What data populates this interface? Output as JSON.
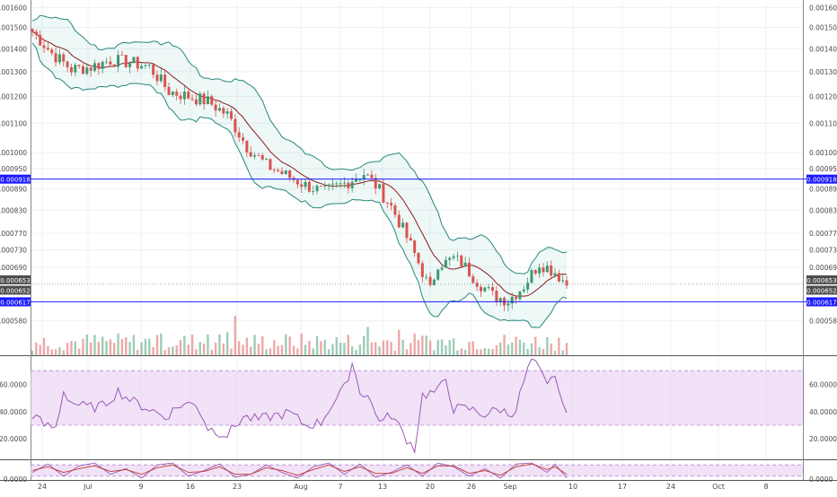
{
  "colors": {
    "background": "#ffffff",
    "grid": "#eef0f3",
    "axis_text": "#4a4a4a",
    "candle_up": "#3d9970",
    "candle_down": "#d9534f",
    "bollinger_band": "#26867a",
    "bollinger_fill": "#26a69a",
    "basis_line": "#8b1a1a",
    "support_resistance": "#1a1aff",
    "rsi_line": "#9b59b6",
    "rsi_band": "#e7cff2",
    "stoch_k": "#9b59b6",
    "stoch_d": "#c0392b",
    "price_tag_dark": "#4d4d4d"
  },
  "chart_data": [
    {
      "type": "candlestick",
      "panel": "price",
      "indicators": [
        "Bollinger Bands",
        "Volume"
      ],
      "y_ticks": [
        "0.001600",
        "0.001500",
        "0.001400",
        "0.001300",
        "0.001200",
        "0.001100",
        "0.001000",
        "0.000950",
        "0.000890",
        "0.000830",
        "0.000770",
        "0.000730",
        "0.000690",
        "0.000580"
      ],
      "y_tick_values": [
        0.0016,
        0.0015,
        0.0014,
        0.0013,
        0.0012,
        0.0011,
        0.001,
        0.00095,
        0.00089,
        0.00083,
        0.00077,
        0.00073,
        0.00069,
        0.00058
      ],
      "scale": "log",
      "horizontal_lines": [
        {
          "label": "0.000918",
          "value": 0.000918
        },
        {
          "label": "0.000617",
          "value": 0.000617
        }
      ],
      "price_labels": [
        {
          "label": "0.000653",
          "value": 0.000653
        },
        {
          "label": "0.000652",
          "value": 0.000652
        }
      ],
      "x_ticks": [
        "24",
        "Jul",
        "9",
        "16",
        "23",
        "Aug",
        "7",
        "13",
        "20",
        "26",
        "Sep",
        "10",
        "17",
        "24",
        "Oct",
        "8"
      ],
      "trend_path": [
        [
          0,
          0.00148
        ],
        [
          5,
          0.00138
        ],
        [
          10,
          0.00131
        ],
        [
          15,
          0.00132
        ],
        [
          20,
          0.00135
        ],
        [
          25,
          0.00134
        ],
        [
          30,
          0.00132
        ],
        [
          35,
          0.00122
        ],
        [
          40,
          0.0012
        ],
        [
          45,
          0.00118
        ],
        [
          50,
          0.00113
        ],
        [
          55,
          0.00102
        ],
        [
          60,
          0.00096
        ],
        [
          65,
          0.00093
        ],
        [
          70,
          0.0009
        ],
        [
          75,
          0.00088
        ],
        [
          80,
          0.000905
        ],
        [
          85,
          0.000935
        ],
        [
          88,
          0.0009
        ],
        [
          92,
          0.00084
        ],
        [
          96,
          0.00076
        ],
        [
          100,
          0.00068
        ],
        [
          102,
          0.00064
        ],
        [
          104,
          0.0007
        ],
        [
          106,
          0.0007
        ],
        [
          108,
          0.00071
        ],
        [
          110,
          0.0007
        ],
        [
          114,
          0.00066
        ],
        [
          118,
          0.00063
        ],
        [
          122,
          0.00062
        ],
        [
          126,
          0.00065
        ],
        [
          130,
          0.0007
        ],
        [
          134,
          0.00068
        ],
        [
          137,
          0.000653
        ]
      ],
      "volume_level": 0.35
    },
    {
      "type": "line",
      "panel": "rsi",
      "y_ticks": [
        "60.0000",
        "40.0000",
        "20.0000"
      ],
      "y_tick_values": [
        60,
        40,
        20
      ],
      "ylim": [
        5,
        80
      ],
      "band": [
        30,
        70
      ],
      "path": [
        [
          0,
          38
        ],
        [
          3,
          30
        ],
        [
          6,
          28
        ],
        [
          8,
          55
        ],
        [
          10,
          47
        ],
        [
          14,
          43
        ],
        [
          18,
          44
        ],
        [
          22,
          55
        ],
        [
          26,
          47
        ],
        [
          30,
          42
        ],
        [
          34,
          36
        ],
        [
          38,
          45
        ],
        [
          42,
          46
        ],
        [
          45,
          28
        ],
        [
          50,
          23
        ],
        [
          54,
          36
        ],
        [
          58,
          34
        ],
        [
          62,
          37
        ],
        [
          66,
          39
        ],
        [
          70,
          30
        ],
        [
          74,
          32
        ],
        [
          76,
          42
        ],
        [
          80,
          57
        ],
        [
          82,
          76
        ],
        [
          84,
          55
        ],
        [
          86,
          52
        ],
        [
          88,
          38
        ],
        [
          90,
          33
        ],
        [
          92,
          38
        ],
        [
          94,
          29
        ],
        [
          96,
          20
        ],
        [
          98,
          13
        ],
        [
          100,
          52
        ],
        [
          104,
          55
        ],
        [
          106,
          64
        ],
        [
          108,
          42
        ],
        [
          112,
          42
        ],
        [
          116,
          38
        ],
        [
          120,
          42
        ],
        [
          122,
          38
        ],
        [
          124,
          42
        ],
        [
          126,
          62
        ],
        [
          128,
          78
        ],
        [
          130,
          70
        ],
        [
          132,
          58
        ],
        [
          134,
          68
        ],
        [
          136,
          42
        ],
        [
          137,
          43
        ]
      ]
    },
    {
      "type": "line",
      "panel": "stochastic",
      "y_ticks": [
        "0.0000"
      ],
      "y_tick_values": [
        0
      ],
      "ylim": [
        0,
        100
      ],
      "band": [
        20,
        80
      ],
      "k_path": [
        [
          0,
          40
        ],
        [
          4,
          85
        ],
        [
          8,
          20
        ],
        [
          12,
          75
        ],
        [
          16,
          90
        ],
        [
          20,
          30
        ],
        [
          24,
          60
        ],
        [
          28,
          10
        ],
        [
          32,
          80
        ],
        [
          36,
          90
        ],
        [
          40,
          20
        ],
        [
          44,
          50
        ],
        [
          48,
          85
        ],
        [
          52,
          15
        ],
        [
          56,
          30
        ],
        [
          60,
          80
        ],
        [
          64,
          40
        ],
        [
          68,
          10
        ],
        [
          72,
          70
        ],
        [
          76,
          90
        ],
        [
          80,
          30
        ],
        [
          84,
          85
        ],
        [
          88,
          15
        ],
        [
          92,
          40
        ],
        [
          96,
          80
        ],
        [
          100,
          20
        ],
        [
          104,
          90
        ],
        [
          108,
          70
        ],
        [
          112,
          20
        ],
        [
          116,
          60
        ],
        [
          120,
          10
        ],
        [
          124,
          85
        ],
        [
          128,
          90
        ],
        [
          132,
          40
        ],
        [
          134,
          85
        ],
        [
          137,
          10
        ]
      ],
      "d_path": [
        [
          0,
          50
        ],
        [
          4,
          70
        ],
        [
          8,
          40
        ],
        [
          12,
          60
        ],
        [
          16,
          75
        ],
        [
          20,
          45
        ],
        [
          24,
          55
        ],
        [
          28,
          30
        ],
        [
          32,
          65
        ],
        [
          36,
          80
        ],
        [
          40,
          40
        ],
        [
          44,
          45
        ],
        [
          48,
          70
        ],
        [
          52,
          30
        ],
        [
          56,
          30
        ],
        [
          60,
          65
        ],
        [
          64,
          50
        ],
        [
          68,
          25
        ],
        [
          72,
          55
        ],
        [
          76,
          80
        ],
        [
          80,
          45
        ],
        [
          84,
          70
        ],
        [
          88,
          35
        ],
        [
          92,
          35
        ],
        [
          96,
          65
        ],
        [
          100,
          35
        ],
        [
          104,
          75
        ],
        [
          108,
          75
        ],
        [
          112,
          35
        ],
        [
          116,
          50
        ],
        [
          120,
          25
        ],
        [
          124,
          70
        ],
        [
          128,
          85
        ],
        [
          132,
          55
        ],
        [
          134,
          70
        ],
        [
          137,
          30
        ]
      ]
    }
  ]
}
